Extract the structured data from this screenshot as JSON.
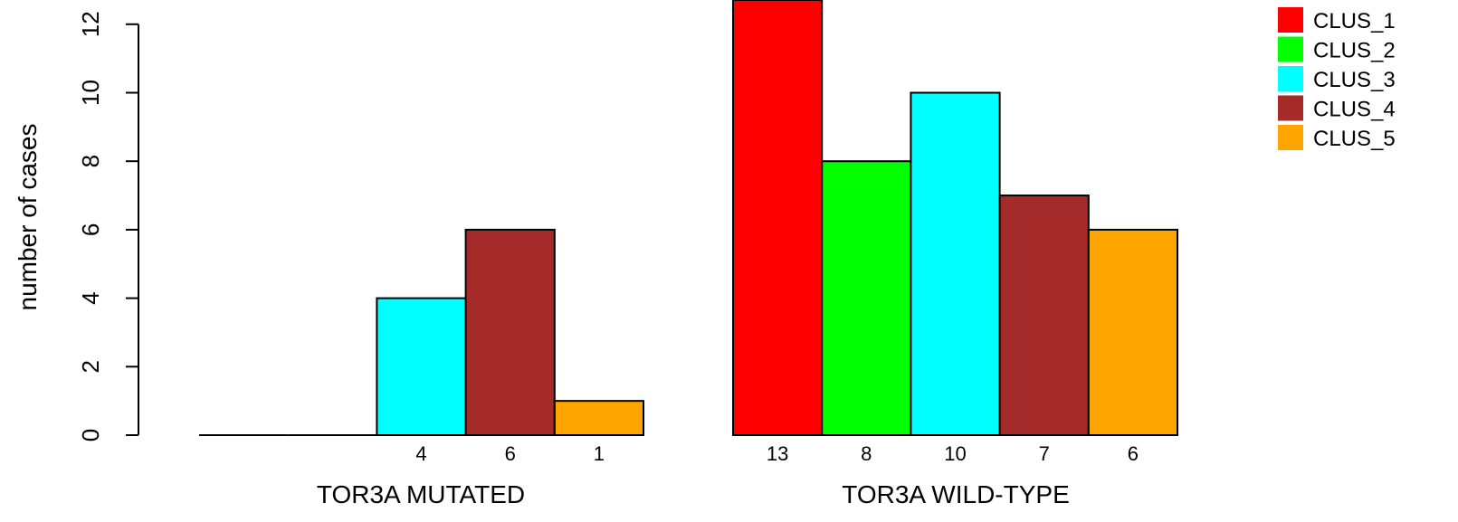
{
  "chart_data": {
    "type": "bar",
    "ylabel": "number of cases",
    "ylim": [
      0,
      12
    ],
    "yticks": [
      0,
      2,
      4,
      6,
      8,
      10,
      12
    ],
    "series": [
      {
        "name": "CLUS_1",
        "color": "#ff0000"
      },
      {
        "name": "CLUS_2",
        "color": "#00ff00"
      },
      {
        "name": "CLUS_3",
        "color": "#00ffff"
      },
      {
        "name": "CLUS_4",
        "color": "#a52a2a"
      },
      {
        "name": "CLUS_5",
        "color": "#ffa500"
      }
    ],
    "groups": [
      {
        "label": "TOR3A MUTATED",
        "values": [
          0,
          0,
          4,
          6,
          1
        ],
        "value_labels": [
          "",
          "",
          "4",
          "6",
          "1"
        ]
      },
      {
        "label": "TOR3A WILD-TYPE",
        "values": [
          13,
          8,
          10,
          7,
          6
        ],
        "value_labels": [
          "13",
          "8",
          "10",
          "7",
          "6"
        ]
      }
    ],
    "legend_position": "top-right"
  }
}
